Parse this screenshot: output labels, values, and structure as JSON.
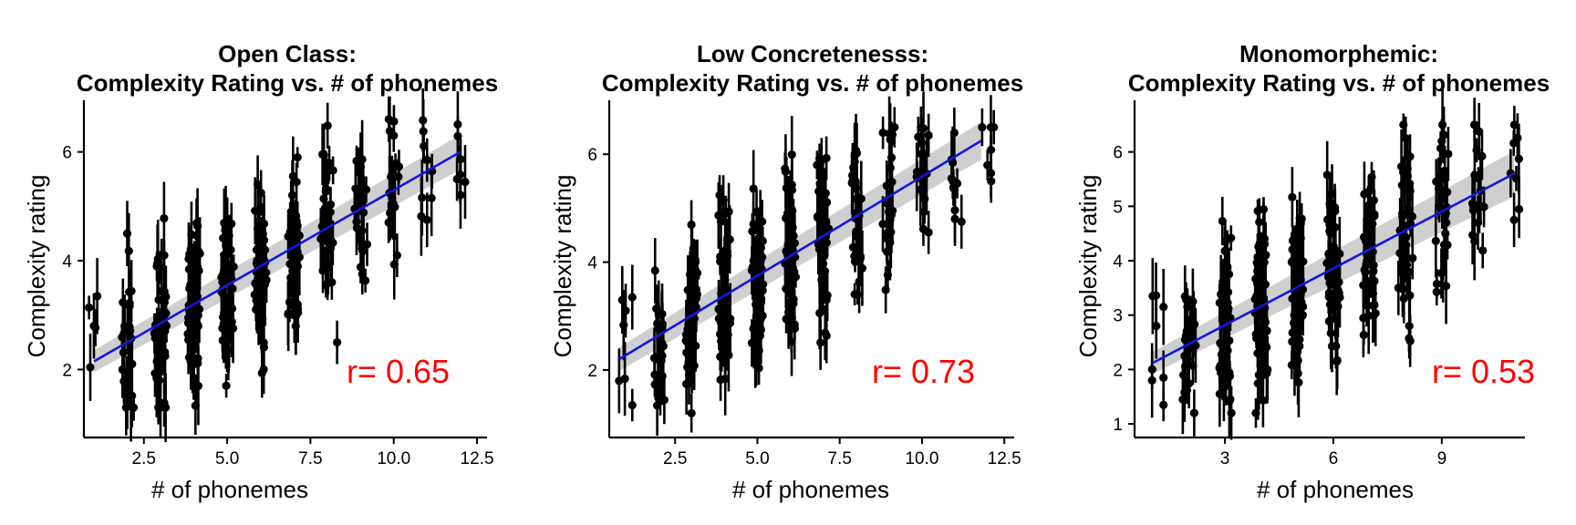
{
  "chart_data": [
    {
      "type": "scatter",
      "title": [
        "Open Class:",
        "Complexity Rating vs. # of phonemes"
      ],
      "xlabel": "# of phonemes",
      "ylabel": "Complexity rating",
      "xlim": [
        0.7,
        12.8
      ],
      "ylim": [
        0.75,
        6.95
      ],
      "xticks": [
        2.5,
        5.0,
        7.5,
        10.0,
        12.5
      ],
      "xtick_labels": [
        "2.5",
        "5.0",
        "7.5",
        "10.0",
        "12.5"
      ],
      "yticks": [
        2,
        4,
        6
      ],
      "ytick_labels": [
        "2",
        "4",
        "6"
      ],
      "grid": false,
      "annotation": "r= 0.65",
      "annotation_value": 0.65,
      "fit_line": {
        "x": [
          1.0,
          12.0
        ],
        "y": [
          2.15,
          6.0
        ],
        "ci_halfwidth_at_ends": [
          0.2,
          0.32
        ],
        "color": "#1515e0"
      },
      "point_summary": {
        "x_min": 1,
        "x_max": 12,
        "y_min": 1.3,
        "y_max": 6.6,
        "point_color": "#000000",
        "errorbars": "vertical"
      },
      "points": [
        {
          "x": 1.0,
          "y": 2.8,
          "err": 0.6
        },
        {
          "x": 1.1,
          "y": 3.35,
          "err": 0.7
        },
        {
          "x": 2.0,
          "y": 4.5,
          "err": 0.6
        },
        {
          "x": 8.3,
          "y": 2.5,
          "err": 0.4
        },
        {
          "x": 10.0,
          "y": 6.3,
          "err": 0.3
        },
        {
          "x": 11.0,
          "y": 5.85,
          "err": 0.4
        },
        {
          "x": 11.0,
          "y": 4.75,
          "err": 0.5
        },
        {
          "x": 11.9,
          "y": 5.5,
          "err": 0.4
        },
        {
          "x": 10.1,
          "y": 4.1,
          "err": 0.4
        },
        {
          "x": 9.2,
          "y": 4.3,
          "err": 0.4
        }
      ]
    },
    {
      "type": "scatter",
      "title": [
        "Low Concretenesss:",
        "Complexity Rating vs. # of phonemes"
      ],
      "xlabel": "# of phonemes",
      "ylabel": "Complexity rating",
      "xlim": [
        0.5,
        12.8
      ],
      "ylim": [
        0.75,
        7.0
      ],
      "xticks": [
        2.5,
        5.0,
        7.5,
        10.0,
        12.5
      ],
      "xtick_labels": [
        "2.5",
        "5.0",
        "7.5",
        "10.0",
        "12.5"
      ],
      "yticks": [
        2,
        4,
        6
      ],
      "ytick_labels": [
        "2",
        "4",
        "6"
      ],
      "grid": false,
      "annotation": "r= 0.73",
      "annotation_value": 0.73,
      "fit_line": {
        "x": [
          0.8,
          11.8
        ],
        "y": [
          2.2,
          6.25
        ],
        "ci_halfwidth_at_ends": [
          0.22,
          0.35
        ],
        "color": "#1515e0"
      },
      "point_summary": {
        "x_min": 1,
        "x_max": 12,
        "y_min": 1.2,
        "y_max": 6.5,
        "point_color": "#000000",
        "errorbars": "vertical"
      },
      "points": [
        {
          "x": 0.8,
          "y": 1.8,
          "err": 0.6
        },
        {
          "x": 1.0,
          "y": 3.1,
          "err": 0.5
        },
        {
          "x": 1.2,
          "y": 3.35,
          "err": 0.6
        },
        {
          "x": 1.2,
          "y": 1.35,
          "err": 0.3
        },
        {
          "x": 10.2,
          "y": 6.35,
          "err": 0.4
        },
        {
          "x": 10.9,
          "y": 5.9,
          "err": 0.5
        },
        {
          "x": 11.0,
          "y": 4.8,
          "err": 0.5
        },
        {
          "x": 11.2,
          "y": 4.75,
          "err": 0.5
        },
        {
          "x": 12.1,
          "y": 5.5,
          "err": 0.4
        },
        {
          "x": 10.2,
          "y": 4.55,
          "err": 0.4
        }
      ]
    },
    {
      "type": "scatter",
      "title": [
        "Monomorphemic:",
        "Complexity Rating vs. # of phonemes"
      ],
      "xlabel": "# of phonemes",
      "ylabel": "Complexity rating",
      "xlim": [
        0.5,
        11.3
      ],
      "ylim": [
        0.75,
        6.95
      ],
      "xticks": [
        3,
        6,
        9
      ],
      "xtick_labels": [
        "3",
        "6",
        "9"
      ],
      "yticks": [
        1,
        2,
        3,
        4,
        5,
        6
      ],
      "ytick_labels": [
        "1",
        "2",
        "3",
        "4",
        "5",
        "6"
      ],
      "grid": false,
      "annotation": "r= 0.53",
      "annotation_value": 0.53,
      "fit_line": {
        "x": [
          1.0,
          11.0
        ],
        "y": [
          2.12,
          5.6
        ],
        "ci_halfwidth_at_ends": [
          0.2,
          0.42
        ],
        "color": "#1515e0"
      },
      "point_summary": {
        "x_min": 1,
        "x_max": 11,
        "y_min": 1.2,
        "y_max": 6.5,
        "point_color": "#000000",
        "errorbars": "vertical"
      },
      "points": [
        {
          "x": 1.0,
          "y": 3.35,
          "err": 0.7
        },
        {
          "x": 1.1,
          "y": 2.8,
          "err": 0.6
        },
        {
          "x": 1.3,
          "y": 3.15,
          "err": 0.7
        },
        {
          "x": 1.3,
          "y": 1.85,
          "err": 0.5
        },
        {
          "x": 1.3,
          "y": 1.35,
          "err": 0.3
        },
        {
          "x": 8.0,
          "y": 6.25,
          "err": 0.4
        },
        {
          "x": 8.1,
          "y": 2.8,
          "err": 0.6
        },
        {
          "x": 9.0,
          "y": 6.2,
          "err": 0.4
        },
        {
          "x": 9.1,
          "y": 4.5,
          "err": 0.5
        },
        {
          "x": 10.0,
          "y": 4.7,
          "err": 0.5
        },
        {
          "x": 11.0,
          "y": 4.75,
          "err": 0.5
        },
        {
          "x": 7.8,
          "y": 3.5,
          "err": 0.5
        }
      ]
    }
  ]
}
